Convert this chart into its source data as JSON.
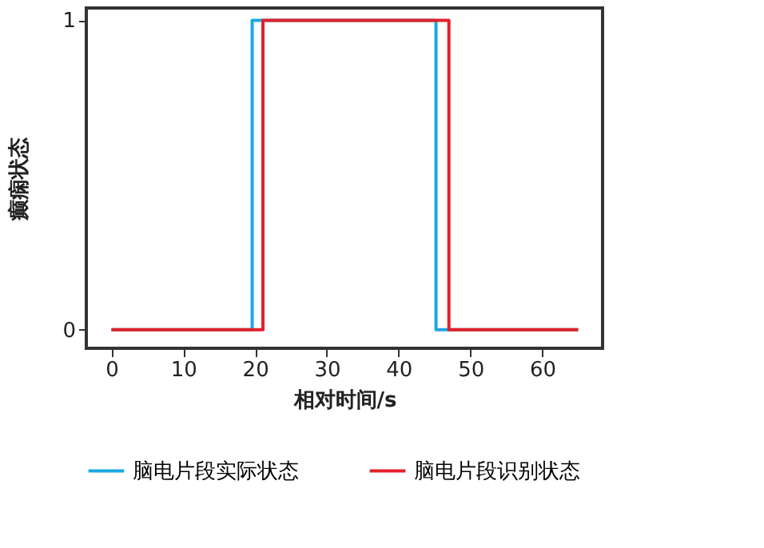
{
  "chart_data": {
    "type": "step",
    "xlabel": "相对时间/s",
    "ylabel": "癫痫状态",
    "series": [
      {
        "name": "脑电片段实际状态",
        "color": "#1ba7e0",
        "x": [
          0,
          19.6,
          45.2,
          65
        ],
        "values": [
          0,
          1,
          0,
          0
        ]
      },
      {
        "name": "脑电片段识别状态",
        "color": "#e3202a",
        "x": [
          0,
          21.1,
          47,
          65
        ],
        "values": [
          0,
          1,
          0,
          0
        ]
      }
    ],
    "xlim": [
      -3.5,
      68.4
    ],
    "xticks": [
      0,
      10,
      20,
      30,
      40,
      50,
      60
    ],
    "ylim": [
      -0.06,
      1.04
    ],
    "yticks": [
      0,
      1
    ],
    "grid": false,
    "legend": "bottom",
    "line_style": "solid"
  }
}
